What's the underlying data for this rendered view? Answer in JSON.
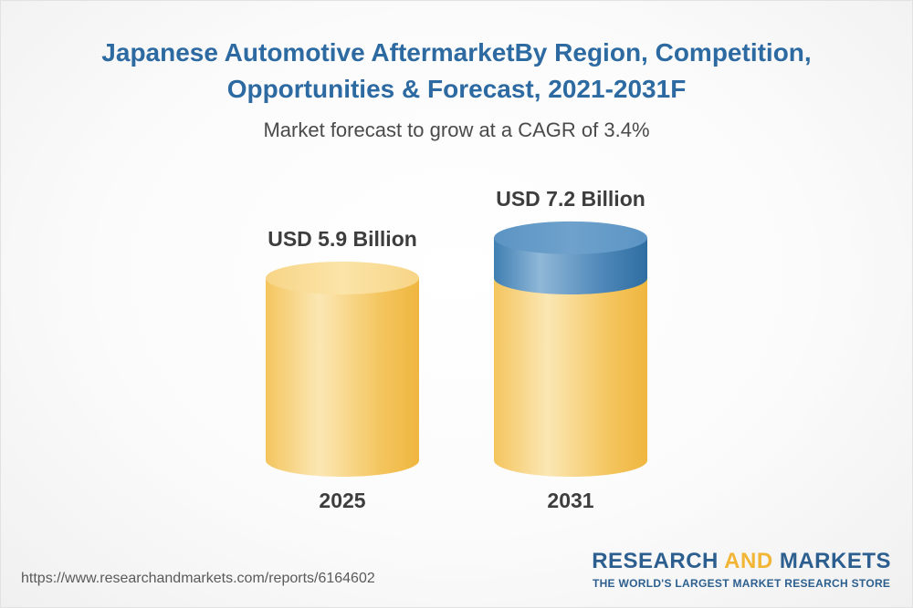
{
  "title": "Japanese Automotive AftermarketBy Region, Competition, Opportunities & Forecast, 2021-2031F",
  "subtitle": "Market forecast to grow at a CAGR of 3.4%",
  "chart_data": {
    "type": "bar",
    "title": "Japanese Automotive AftermarketBy Region, Competition, Opportunities & Forecast, 2021-2031F",
    "subtitle": "Market forecast to grow at a CAGR of 3.4%",
    "categories": [
      "2025",
      "2031"
    ],
    "values": [
      5.9,
      7.2
    ],
    "unit": "USD Billion",
    "data_labels": [
      "USD 5.9 Billion",
      "USD 7.2 Billion"
    ],
    "cagr_percent": 3.4,
    "style": "3d-cylinder",
    "colors": {
      "body": "#f4c55e",
      "body_highlight": "#fbe7b4",
      "top": "#f7d587",
      "growth": "#3f7fb3",
      "growth_highlight": "#8fb7d7"
    },
    "xlabel": "",
    "ylabel": ""
  },
  "footer": {
    "url": "https://www.researchandmarkets.com/reports/6164602",
    "brand_part1": "RESEARCH ",
    "brand_part2": "AND",
    "brand_part3": " MARKETS",
    "tagline": "THE WORLD'S LARGEST MARKET RESEARCH STORE"
  }
}
